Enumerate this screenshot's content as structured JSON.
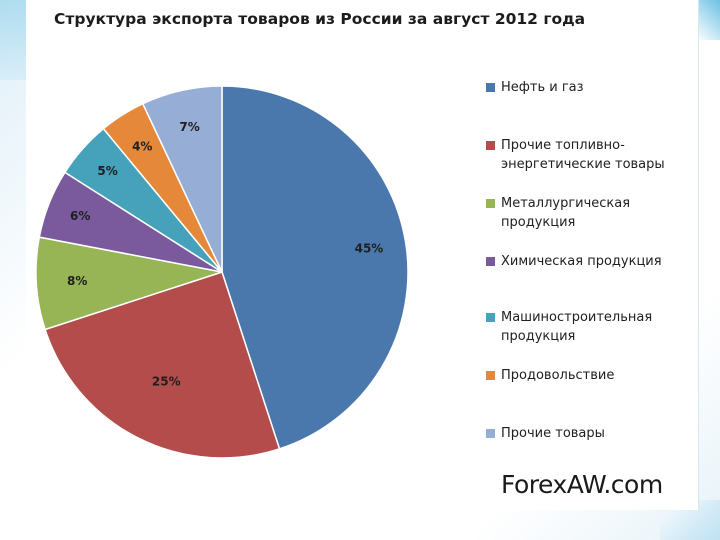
{
  "chart_data": {
    "type": "pie",
    "title": "Структура экспорта товаров из России за август 2012 года",
    "categories": [
      "Нефть и газ",
      "Прочие топливно-энергетические товары",
      "Металлургическая продукция",
      "Химическая продукция",
      "Машиностроительная продукция",
      "Продовольствие",
      "Прочие товары"
    ],
    "legend_lines": [
      [
        "Нефть и газ"
      ],
      [
        "Прочие топливно-",
        "энергетические товары"
      ],
      [
        "Металлургическая",
        "продукция"
      ],
      [
        "Химическая продукция"
      ],
      [
        "Машиностроительная",
        "продукция"
      ],
      [
        "Продовольствие"
      ],
      [
        "Прочие товары"
      ]
    ],
    "values": [
      45,
      25,
      8,
      6,
      5,
      4,
      7
    ],
    "value_labels": [
      "45%",
      "25%",
      "8%",
      "6%",
      "5%",
      "4%",
      "7%"
    ],
    "colors": [
      "#4a78ad",
      "#b34c4a",
      "#97b555",
      "#7a5a9c",
      "#45a2ba",
      "#e6883a",
      "#96add6"
    ],
    "legend_position": "right",
    "start": "12 o'clock",
    "direction": "clockwise"
  },
  "brand": "ForexAW.com"
}
